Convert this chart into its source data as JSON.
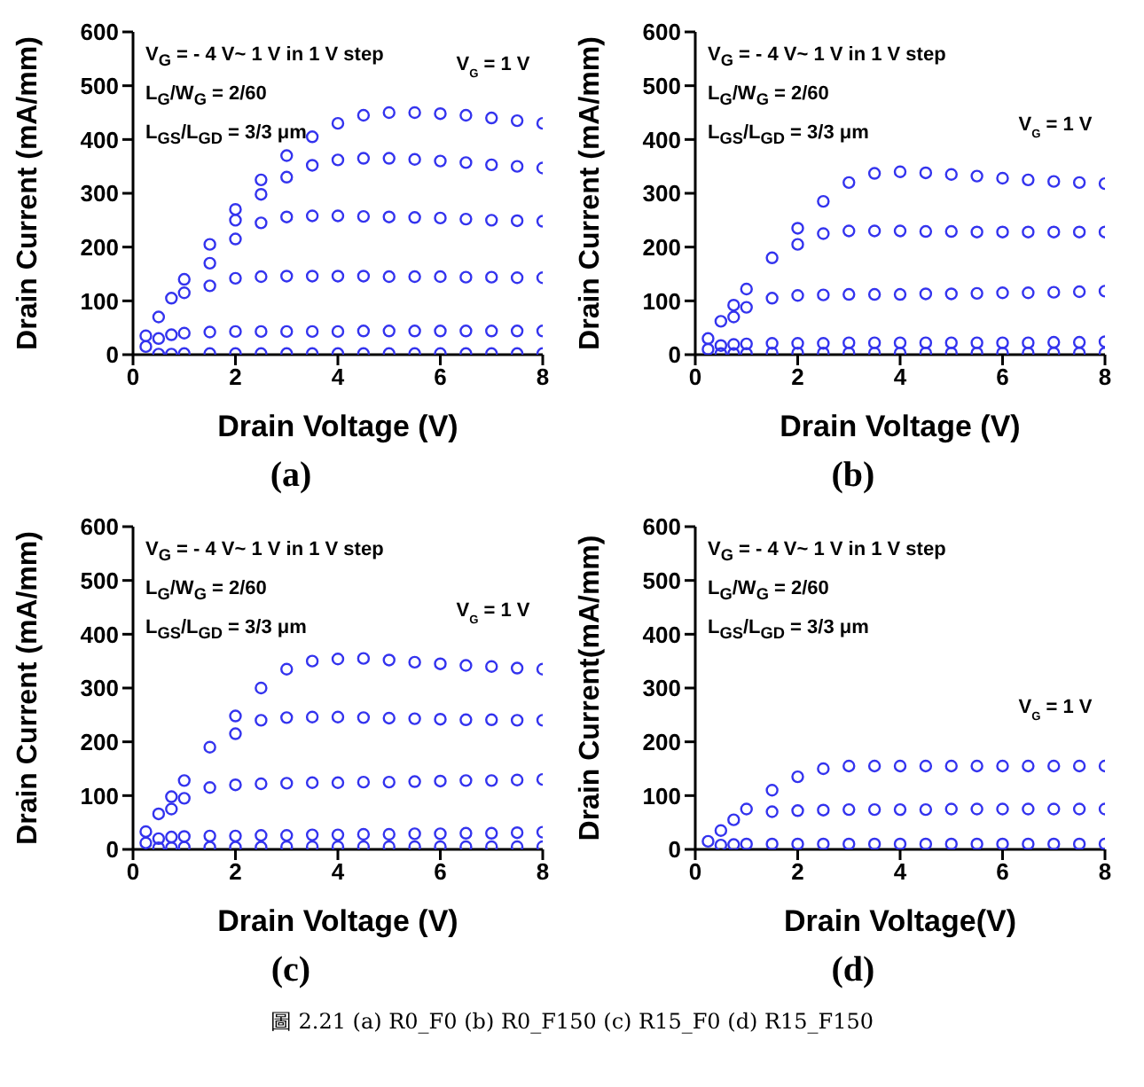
{
  "chart_data": [
    {
      "type": "scatter",
      "subtitle": "(a)",
      "xlabel": "Drain Voltage (V)",
      "ylabel": "Drain Current (mA/mm)",
      "marker": "circle",
      "xlim": [
        0,
        8
      ],
      "xticks": [
        0,
        2,
        4,
        6,
        8
      ],
      "ylim": [
        0,
        600
      ],
      "yticks": [
        0,
        100,
        200,
        300,
        400,
        500,
        600
      ],
      "annotations": [
        "V$_{G}$ = - 4 V~ 1 V in 1 V step",
        "L$_{G}$/W$_{G}$ = 2/60",
        "L$_{GS}$/L$_{GD}$ = 3/3 μm",
        "V$_{G}$ = 1 V"
      ],
      "x": [
        0.25,
        0.5,
        0.75,
        1,
        1.5,
        2,
        2.5,
        3,
        3.5,
        4,
        4.5,
        5,
        5.5,
        6,
        6.5,
        7,
        7.5,
        8
      ],
      "series": [
        {
          "color": "#3333ee",
          "values": [
            35,
            70,
            105,
            140,
            205,
            270,
            325,
            370,
            405,
            430,
            445,
            450,
            450,
            448,
            445,
            440,
            435,
            430
          ]
        },
        {
          "color": "#3333ee",
          "values": [
            null,
            null,
            null,
            null,
            null,
            250,
            298,
            330,
            352,
            362,
            365,
            365,
            363,
            360,
            357,
            353,
            350,
            347
          ]
        },
        {
          "color": "#3333ee",
          "values": [
            null,
            null,
            null,
            115,
            170,
            215,
            245,
            256,
            258,
            258,
            257,
            256,
            255,
            254,
            252,
            250,
            249,
            248
          ]
        },
        {
          "color": "#3333ee",
          "values": [
            null,
            null,
            null,
            null,
            128,
            142,
            145,
            146,
            146,
            146,
            146,
            145,
            145,
            145,
            144,
            144,
            143,
            143
          ]
        },
        {
          "color": "#3333ee",
          "values": [
            15,
            30,
            37,
            40,
            42,
            43,
            43,
            43,
            43,
            43,
            44,
            44,
            44,
            44,
            44,
            44,
            44,
            44
          ]
        },
        {
          "color": "#3333ee",
          "values": [
            null,
            1,
            1,
            2,
            2,
            2,
            2,
            2,
            2,
            2,
            2,
            2,
            2,
            2,
            2,
            2,
            2,
            2
          ]
        }
      ]
    },
    {
      "type": "scatter",
      "subtitle": "(b)",
      "xlabel": "Drain Voltage (V)",
      "ylabel": "Drain Current (mA/mm)",
      "marker": "circle",
      "xlim": [
        0,
        8
      ],
      "xticks": [
        0,
        2,
        4,
        6,
        8
      ],
      "ylim": [
        0,
        600
      ],
      "yticks": [
        0,
        100,
        200,
        300,
        400,
        500,
        600
      ],
      "annotations": [
        "V$_{G}$ = - 4 V~ 1 V in 1 V step",
        "L$_{G}$/W$_{G}$ = 2/60",
        "L$_{GS}$/L$_{GD}$ = 3/3 μm",
        "V$_{G}$ = 1 V"
      ],
      "x": [
        0.25,
        0.5,
        0.75,
        1,
        1.5,
        2,
        2.5,
        3,
        3.5,
        4,
        4.5,
        5,
        5.5,
        6,
        6.5,
        7,
        7.5,
        8
      ],
      "series": [
        {
          "color": "#3333ee",
          "values": [
            30,
            62,
            92,
            122,
            180,
            235,
            285,
            320,
            337,
            340,
            338,
            335,
            332,
            328,
            325,
            322,
            320,
            318
          ]
        },
        {
          "color": "#3333ee",
          "values": [
            null,
            null,
            null,
            null,
            null,
            205,
            225,
            230,
            230,
            230,
            229,
            229,
            228,
            228,
            228,
            228,
            228,
            228
          ]
        },
        {
          "color": "#3333ee",
          "values": [
            null,
            null,
            70,
            88,
            105,
            110,
            111,
            112,
            112,
            112,
            113,
            113,
            114,
            115,
            115,
            116,
            117,
            118
          ]
        },
        {
          "color": "#3333ee",
          "values": [
            10,
            17,
            19,
            20,
            21,
            21,
            21,
            22,
            22,
            22,
            22,
            22,
            22,
            22,
            22,
            23,
            23,
            24
          ]
        },
        {
          "color": "#3333ee",
          "values": [
            null,
            2,
            2,
            2,
            3,
            3,
            3,
            3,
            3,
            3,
            3,
            3,
            3,
            3,
            3,
            3,
            3,
            3
          ]
        }
      ]
    },
    {
      "type": "scatter",
      "subtitle": "(c)",
      "xlabel": "Drain Voltage (V)",
      "ylabel": "Drain Current (mA/mm)",
      "marker": "circle",
      "xlim": [
        0,
        8
      ],
      "xticks": [
        0,
        2,
        4,
        6,
        8
      ],
      "ylim": [
        0,
        600
      ],
      "yticks": [
        0,
        100,
        200,
        300,
        400,
        500,
        600
      ],
      "annotations": [
        "V$_{G}$ = - 4 V~ 1 V in 1 V step",
        "L$_{G}$/W$_{G}$ = 2/60",
        "L$_{GS}$/L$_{GD}$ = 3/3 μm",
        "V$_{G}$ = 1 V"
      ],
      "x": [
        0.25,
        0.5,
        0.75,
        1,
        1.5,
        2,
        2.5,
        3,
        3.5,
        4,
        4.5,
        5,
        5.5,
        6,
        6.5,
        7,
        7.5,
        8
      ],
      "series": [
        {
          "color": "#3333ee",
          "values": [
            33,
            66,
            98,
            128,
            190,
            248,
            300,
            335,
            350,
            354,
            355,
            352,
            348,
            345,
            342,
            340,
            337,
            335
          ]
        },
        {
          "color": "#3333ee",
          "values": [
            null,
            null,
            null,
            null,
            null,
            215,
            240,
            245,
            246,
            246,
            245,
            244,
            243,
            242,
            241,
            241,
            240,
            240
          ]
        },
        {
          "color": "#3333ee",
          "values": [
            null,
            null,
            75,
            95,
            115,
            120,
            122,
            123,
            124,
            124,
            125,
            125,
            126,
            127,
            128,
            128,
            129,
            130
          ]
        },
        {
          "color": "#3333ee",
          "values": [
            12,
            20,
            23,
            24,
            25,
            25,
            26,
            26,
            27,
            27,
            28,
            28,
            29,
            29,
            30,
            30,
            31,
            32
          ]
        },
        {
          "color": "#3333ee",
          "values": [
            null,
            3,
            3,
            4,
            4,
            4,
            4,
            5,
            5,
            5,
            5,
            5,
            5,
            5,
            5,
            5,
            5,
            5
          ]
        }
      ]
    },
    {
      "type": "scatter",
      "subtitle": "(d)",
      "xlabel": "Drain Voltage(V)",
      "ylabel": "Drain Current(mA/mm)",
      "marker": "circle",
      "xlim": [
        0,
        8
      ],
      "xticks": [
        0,
        2,
        4,
        6,
        8
      ],
      "ylim": [
        0,
        600
      ],
      "yticks": [
        0,
        100,
        200,
        300,
        400,
        500,
        600
      ],
      "annotations": [
        "V$_{G}$ = - 4 V~ 1 V in 1 V step",
        "L$_{G}$/W$_{G}$ = 2/60",
        "L$_{GS}$/L$_{GD}$ = 3/3 μm",
        "V$_{G}$ = 1 V",
        "圖 2.21 (a) R0_F0 (b) R0_F150 (c) R15_F0 (d) R15_F150"
      ],
      "x": [
        0.25,
        0.5,
        0.75,
        1,
        1.5,
        2,
        2.5,
        3,
        3.5,
        4,
        4.5,
        5,
        5.5,
        6,
        6.5,
        7,
        7.5,
        8
      ],
      "series": [
        {
          "color": "#3333ee",
          "values": [
            15,
            35,
            55,
            75,
            110,
            135,
            150,
            155,
            155,
            155,
            155,
            155,
            155,
            155,
            155,
            155,
            155,
            155
          ]
        },
        {
          "color": "#3333ee",
          "values": [
            null,
            null,
            null,
            null,
            70,
            72,
            73,
            74,
            74,
            74,
            74,
            75,
            75,
            75,
            75,
            75,
            75,
            75
          ]
        },
        {
          "color": "#3333ee",
          "values": [
            null,
            8,
            9,
            10,
            10,
            10,
            10,
            10,
            10,
            10,
            10,
            10,
            10,
            10,
            10,
            10,
            10,
            10
          ]
        }
      ]
    }
  ]
}
